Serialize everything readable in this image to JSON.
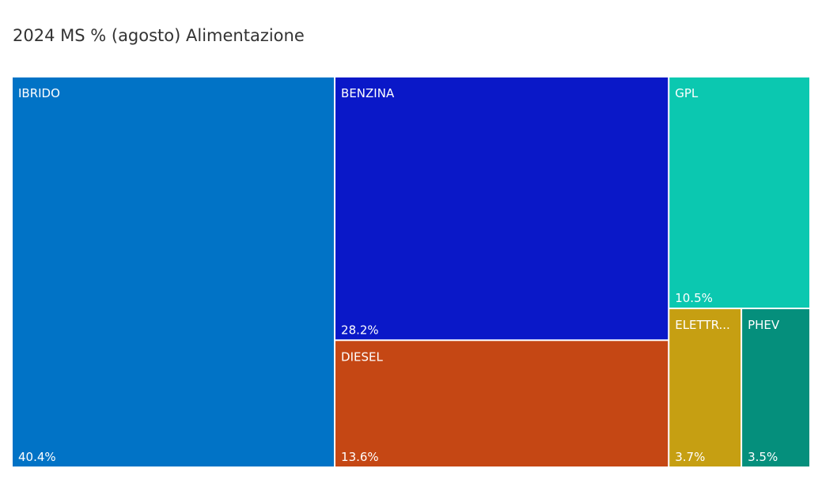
{
  "chart_data": {
    "type": "treemap",
    "title": "2024 MS % (agosto) Alimentazione",
    "categories": [
      "IBRIDO",
      "BENZINA",
      "DIESEL",
      "GPL",
      "ELETTR...",
      "PHEV"
    ],
    "values": [
      40.4,
      28.2,
      13.6,
      10.5,
      3.7,
      3.5
    ],
    "value_labels": [
      "40.4%",
      "28.2%",
      "13.6%",
      "10.5%",
      "3.7%",
      "3.5%"
    ],
    "colors": [
      "#0173c6",
      "#0a18c8",
      "#c54714",
      "#0bc8b0",
      "#c69f12",
      "#058f7c"
    ]
  }
}
